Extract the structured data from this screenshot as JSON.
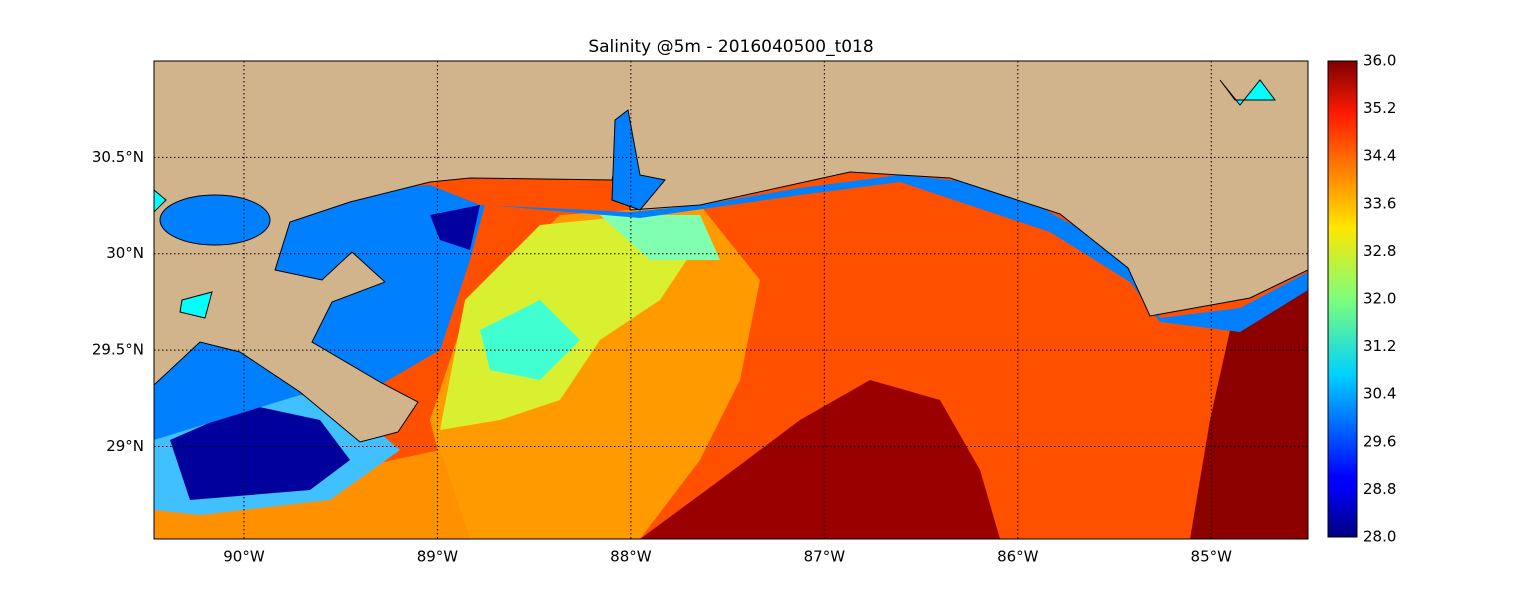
{
  "map": {
    "title": "Salinity @5m - 2016040500_t018",
    "xlim": [
      -90.465,
      -84.5
    ],
    "ylim": [
      28.52,
      31.0
    ],
    "xticks": [
      {
        "value": -90,
        "label": "90°W"
      },
      {
        "value": -89,
        "label": "89°W"
      },
      {
        "value": -88,
        "label": "88°W"
      },
      {
        "value": -87,
        "label": "87°W"
      },
      {
        "value": -86,
        "label": "86°W"
      },
      {
        "value": -85,
        "label": "85°W"
      }
    ],
    "yticks": [
      {
        "value": 29,
        "label": "29°N"
      },
      {
        "value": 29.5,
        "label": "29.5°N"
      },
      {
        "value": 30,
        "label": "30°N"
      },
      {
        "value": 30.5,
        "label": "30.5°N"
      }
    ],
    "grid": true,
    "colorbar": {
      "lim": [
        28,
        36
      ],
      "ticks": [
        {
          "value": 28,
          "label": "28.0"
        },
        {
          "value": 28.8,
          "label": "28.8"
        },
        {
          "value": 29.6,
          "label": "29.6"
        },
        {
          "value": 30.4,
          "label": "30.4"
        },
        {
          "value": 31.2,
          "label": "31.2"
        },
        {
          "value": 32,
          "label": "32.0"
        },
        {
          "value": 32.8,
          "label": "32.8"
        },
        {
          "value": 33.6,
          "label": "33.6"
        },
        {
          "value": 34.4,
          "label": "34.4"
        },
        {
          "value": 35.2,
          "label": "35.2"
        },
        {
          "value": 36,
          "label": "36.0"
        }
      ]
    }
  }
}
